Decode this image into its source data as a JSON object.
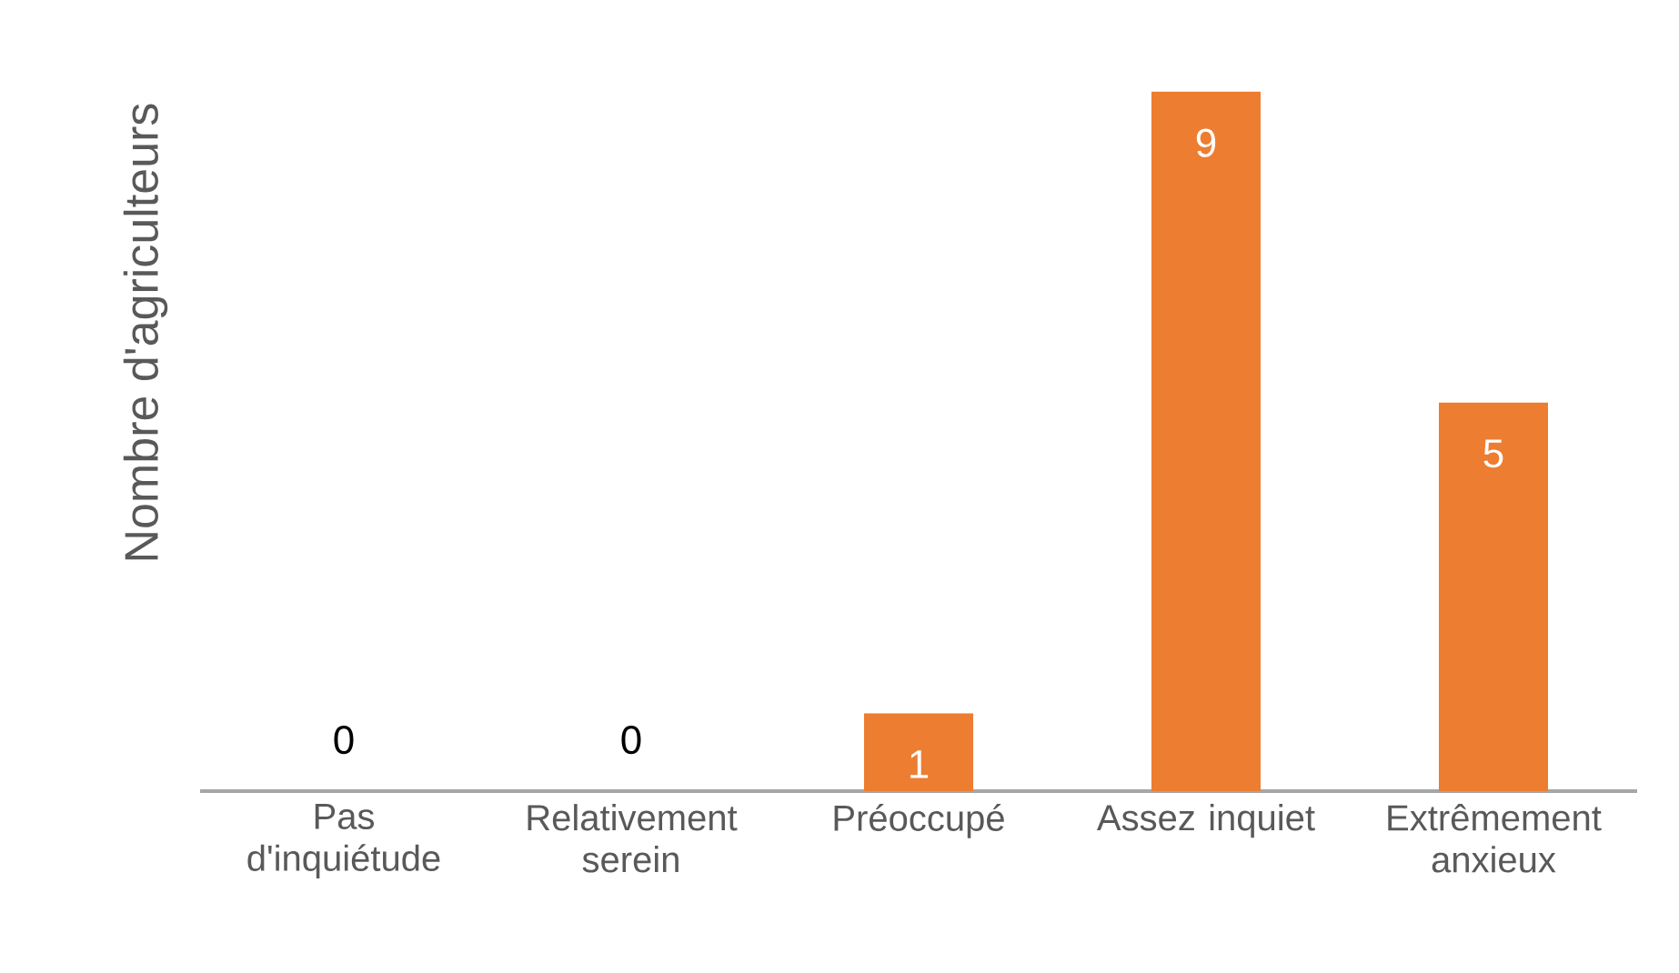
{
  "chart_data": {
    "type": "bar",
    "ylabel": "Nombre d'agriculteurs",
    "categories": [
      "Pas d'inquiétude",
      "Relativement serein",
      "Préoccupé",
      "Assez inquiet",
      "Extrêmement anxieux"
    ],
    "values": [
      0,
      0,
      1,
      9,
      5
    ],
    "color": "#ed7d31",
    "data_labels": true,
    "tick_labels": "x"
  }
}
